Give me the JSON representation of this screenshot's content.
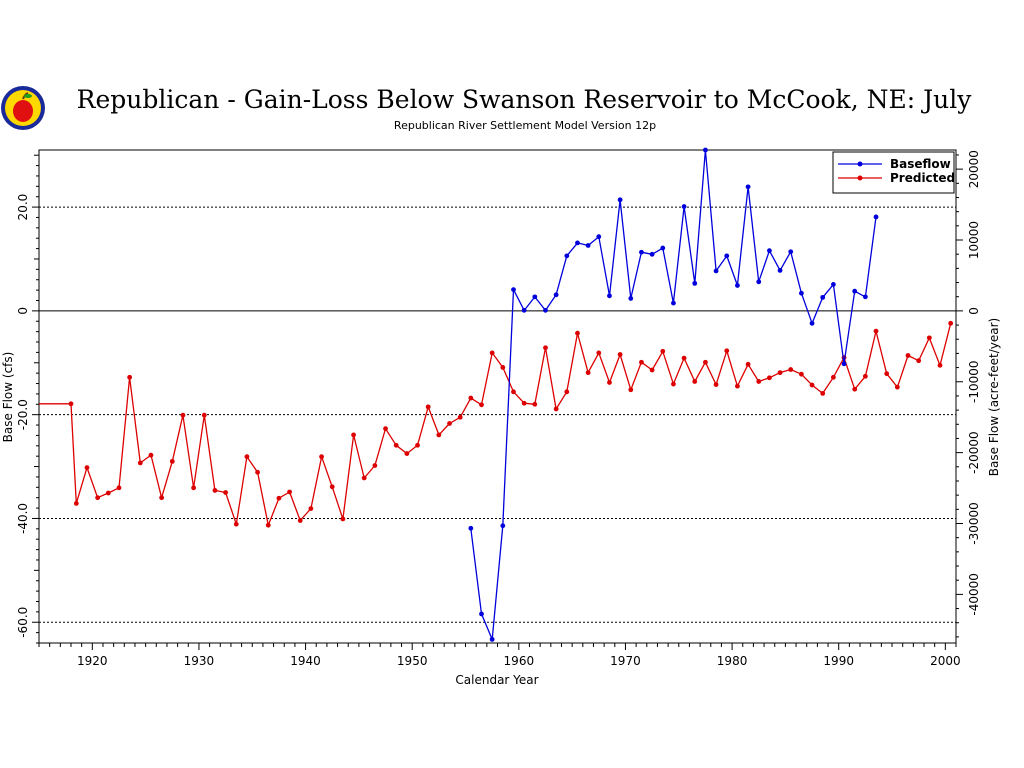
{
  "chart_data": {
    "type": "line",
    "title": "Republican - Gain-Loss Below Swanson Reservoir to McCook, NE: July",
    "subtitle": "Republican River Settlement Model Version 12p",
    "xlabel": "Calendar Year",
    "ylabel": "Base Flow (cfs)",
    "y2label": "Base Flow (acre-feet/year)",
    "xlim": [
      1915,
      2001
    ],
    "ylim": [
      -64,
      31
    ],
    "y2lim": [
      -46860,
      22700
    ],
    "x_ticks": [
      1920,
      1930,
      1940,
      1950,
      1960,
      1970,
      1980,
      1990,
      2000
    ],
    "y_ticks": [
      -60,
      -40,
      -20,
      0,
      20
    ],
    "y_tick_labels": [
      "-60.0",
      "-40.0",
      "-20.0",
      "0",
      "20.0"
    ],
    "y2_ticks": [
      -40000,
      -30000,
      -20000,
      -10000,
      0,
      10000,
      20000
    ],
    "gridlines_y": [
      -60,
      -40,
      -20,
      20
    ],
    "zero_line": 0,
    "legend_position": "top-right",
    "series": [
      {
        "name": "Baseflow",
        "color": "#0000dd",
        "points": [
          [
            1955.5,
            -41.9
          ],
          [
            1956.5,
            -58.4
          ],
          [
            1957.5,
            -63.3
          ],
          [
            1958.5,
            -41.4
          ],
          [
            1959.5,
            4.1
          ],
          [
            1960.5,
            0.1
          ],
          [
            1961.5,
            2.7
          ],
          [
            1962.5,
            0.1
          ],
          [
            1963.5,
            3.1
          ],
          [
            1964.5,
            10.6
          ],
          [
            1965.5,
            13.1
          ],
          [
            1966.5,
            12.6
          ],
          [
            1967.5,
            14.3
          ],
          [
            1968.5,
            2.9
          ],
          [
            1969.5,
            21.4
          ],
          [
            1970.5,
            2.4
          ],
          [
            1971.5,
            11.3
          ],
          [
            1972.5,
            10.9
          ],
          [
            1973.5,
            12.1
          ],
          [
            1974.5,
            1.5
          ],
          [
            1975.5,
            20.1
          ],
          [
            1976.5,
            5.3
          ],
          [
            1977.5,
            31.0
          ],
          [
            1978.5,
            7.7
          ],
          [
            1979.5,
            10.6
          ],
          [
            1980.5,
            4.9
          ],
          [
            1981.5,
            23.9
          ],
          [
            1982.5,
            5.6
          ],
          [
            1983.5,
            11.6
          ],
          [
            1984.5,
            7.8
          ],
          [
            1985.5,
            11.4
          ],
          [
            1986.5,
            3.4
          ],
          [
            1987.5,
            -2.4
          ],
          [
            1988.5,
            2.6
          ],
          [
            1989.5,
            5.1
          ],
          [
            1990.5,
            -10.2
          ],
          [
            1991.5,
            3.8
          ],
          [
            1992.5,
            2.7
          ],
          [
            1993.5,
            18.1
          ]
        ]
      },
      {
        "name": "Predicted",
        "color": "#dd0000",
        "points": [
          [
            1915,
            -17.9
          ],
          [
            1918,
            -17.9
          ],
          [
            1918.5,
            -37.1
          ],
          [
            1919.5,
            -30.2
          ],
          [
            1920.5,
            -36.0
          ],
          [
            1921.5,
            -35.1
          ],
          [
            1922.5,
            -34.1
          ],
          [
            1923.5,
            -12.8
          ],
          [
            1924.5,
            -29.3
          ],
          [
            1925.5,
            -27.8
          ],
          [
            1926.5,
            -36.0
          ],
          [
            1927.5,
            -29.0
          ],
          [
            1928.5,
            -20.1
          ],
          [
            1929.5,
            -34.1
          ],
          [
            1930.5,
            -20.1
          ],
          [
            1931.5,
            -34.6
          ],
          [
            1932.5,
            -35.0
          ],
          [
            1933.5,
            -41.1
          ],
          [
            1934.5,
            -28.1
          ],
          [
            1935.5,
            -31.1
          ],
          [
            1936.5,
            -41.3
          ],
          [
            1937.5,
            -36.1
          ],
          [
            1938.5,
            -34.9
          ],
          [
            1939.5,
            -40.4
          ],
          [
            1940.5,
            -38.1
          ],
          [
            1941.5,
            -28.1
          ],
          [
            1942.5,
            -33.9
          ],
          [
            1943.5,
            -40.1
          ],
          [
            1944.5,
            -23.9
          ],
          [
            1945.5,
            -32.2
          ],
          [
            1946.5,
            -29.8
          ],
          [
            1947.5,
            -22.7
          ],
          [
            1948.5,
            -25.9
          ],
          [
            1949.5,
            -27.5
          ],
          [
            1950.5,
            -25.9
          ],
          [
            1951.5,
            -18.5
          ],
          [
            1952.5,
            -23.9
          ],
          [
            1953.5,
            -21.7
          ],
          [
            1954.5,
            -20.5
          ],
          [
            1955.5,
            -16.8
          ],
          [
            1956.5,
            -18.1
          ],
          [
            1957.5,
            -8.1
          ],
          [
            1958.5,
            -10.9
          ],
          [
            1959.5,
            -15.6
          ],
          [
            1960.5,
            -17.8
          ],
          [
            1961.5,
            -18.0
          ],
          [
            1962.5,
            -7.1
          ],
          [
            1963.5,
            -18.9
          ],
          [
            1964.5,
            -15.6
          ],
          [
            1965.5,
            -4.3
          ],
          [
            1966.5,
            -11.9
          ],
          [
            1967.5,
            -8.1
          ],
          [
            1968.5,
            -13.8
          ],
          [
            1969.5,
            -8.4
          ],
          [
            1970.5,
            -15.2
          ],
          [
            1971.5,
            -9.9
          ],
          [
            1972.5,
            -11.4
          ],
          [
            1973.5,
            -7.8
          ],
          [
            1974.5,
            -14.1
          ],
          [
            1975.5,
            -9.1
          ],
          [
            1976.5,
            -13.6
          ],
          [
            1977.5,
            -9.9
          ],
          [
            1978.5,
            -14.2
          ],
          [
            1979.5,
            -7.7
          ],
          [
            1980.5,
            -14.5
          ],
          [
            1981.5,
            -10.3
          ],
          [
            1982.5,
            -13.6
          ],
          [
            1983.5,
            -12.9
          ],
          [
            1984.5,
            -11.9
          ],
          [
            1985.5,
            -11.3
          ],
          [
            1986.5,
            -12.2
          ],
          [
            1987.5,
            -14.3
          ],
          [
            1988.5,
            -15.9
          ],
          [
            1989.5,
            -12.8
          ],
          [
            1990.5,
            -9.0
          ],
          [
            1991.5,
            -15.1
          ],
          [
            1992.5,
            -12.6
          ],
          [
            1993.5,
            -3.9
          ],
          [
            1994.5,
            -12.1
          ],
          [
            1995.5,
            -14.7
          ],
          [
            1996.5,
            -8.6
          ],
          [
            1997.5,
            -9.6
          ],
          [
            1998.5,
            -5.2
          ],
          [
            1999.5,
            -10.5
          ],
          [
            2000.5,
            -2.4
          ]
        ]
      }
    ]
  }
}
